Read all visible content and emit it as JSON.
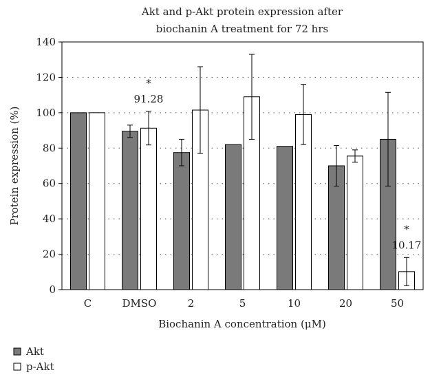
{
  "chart_data": {
    "type": "bar",
    "title_lines": [
      "Akt and p-Akt protein expression after",
      "biochanin A treatment for 72 hrs"
    ],
    "xlabel": "Biochanin A concentration (μM)",
    "ylabel": "Protein expression (%)",
    "categories": [
      "C",
      "DMSO",
      "2",
      "5",
      "10",
      "20",
      "50"
    ],
    "ylim": [
      0,
      140
    ],
    "yticks": [
      0,
      20,
      40,
      60,
      80,
      100,
      120,
      140
    ],
    "grid": "dotted horizontal",
    "legend_position": "bottom-left",
    "series": [
      {
        "name": "Akt",
        "color": "#7a7a7a",
        "values": [
          100,
          89.5,
          77.5,
          82,
          81,
          70,
          85
        ],
        "error": [
          0,
          3.5,
          7.5,
          0,
          0,
          11.5,
          26.5
        ]
      },
      {
        "name": "p-Akt",
        "color": "#ffffff",
        "values": [
          100,
          91.28,
          101.5,
          109,
          99,
          75.5,
          10.17
        ],
        "error": [
          0,
          9.5,
          24.5,
          24,
          17,
          3.5,
          8
        ]
      }
    ],
    "annotations": [
      {
        "category": "DMSO",
        "series": "p-Akt",
        "marker": "*",
        "label": "91.28"
      },
      {
        "category": "50",
        "series": "p-Akt",
        "marker": "*",
        "label": "10.17"
      }
    ]
  }
}
